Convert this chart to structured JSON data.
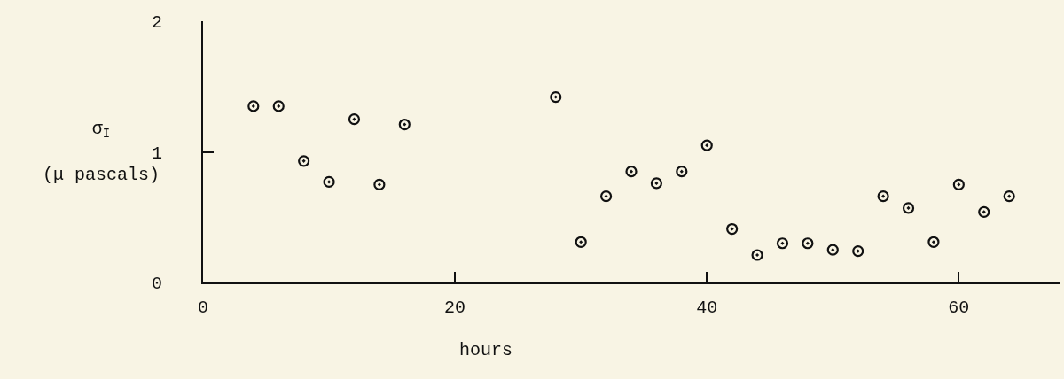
{
  "chart_data": {
    "type": "scatter",
    "xlabel": "hours",
    "ylabel": "σ$_{I}$\n(μ pascals)",
    "x": [
      4,
      6,
      8,
      10,
      12,
      14,
      16,
      28,
      30,
      32,
      34,
      36,
      38,
      40,
      42,
      44,
      46,
      48,
      50,
      52,
      54,
      56,
      58,
      60,
      62,
      64
    ],
    "series": [
      {
        "color": "#111111",
        "values": [
          1.35,
          1.35,
          0.93,
          0.77,
          1.25,
          0.75,
          1.21,
          1.42,
          0.31,
          0.66,
          0.85,
          0.76,
          0.85,
          1.05,
          0.41,
          0.21,
          0.3,
          0.3,
          0.25,
          0.24,
          0.66,
          0.57,
          0.31,
          0.75,
          0.54,
          0.66
        ]
      }
    ],
    "xlim": [
      0,
      68
    ],
    "ylim": [
      0,
      2
    ],
    "xticks": [
      0,
      20,
      40,
      60
    ],
    "yticks": [
      0,
      1,
      2
    ],
    "marker": "circle"
  }
}
